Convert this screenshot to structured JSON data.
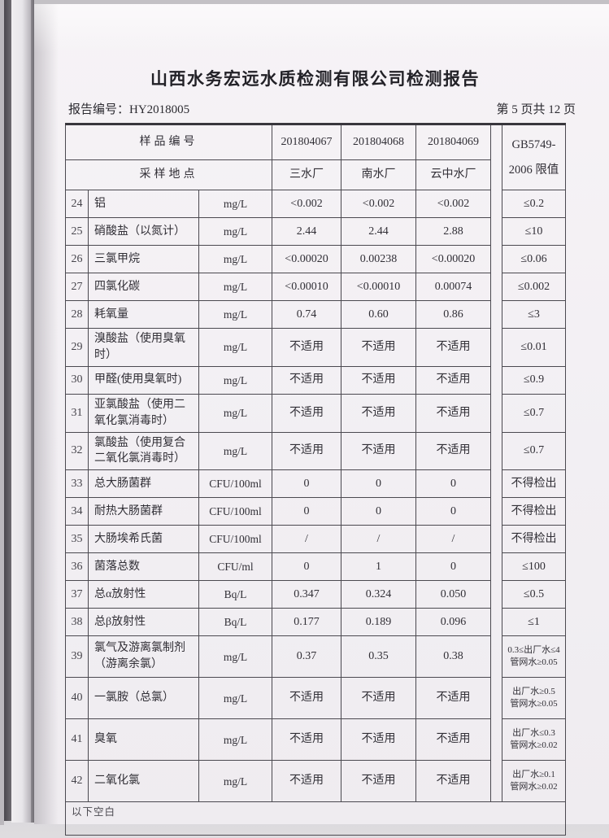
{
  "page": {
    "title": "山西水务宏远水质检测有限公司检测报告",
    "report_no": "报告编号：HY2018005",
    "page_indicator": "第 5 页共 12 页"
  },
  "table": {
    "header": {
      "sample_id_label": "样品编号",
      "location_label": "采样地点",
      "sample_ids": [
        "201804067",
        "201804068",
        "201804069"
      ],
      "locations": [
        "三水厂",
        "南水厂",
        "云中水厂"
      ],
      "limit_header_line1": "GB5749-",
      "limit_header_line2": "2006 限值"
    },
    "rows": [
      {
        "no": "24",
        "name": "铝",
        "unit": "mg/L",
        "values": [
          "<0.002",
          "<0.002",
          "<0.002"
        ],
        "limit": "≤0.2"
      },
      {
        "no": "25",
        "name": "硝酸盐（以氮计）",
        "unit": "mg/L",
        "values": [
          "2.44",
          "2.44",
          "2.88"
        ],
        "limit": "≤10"
      },
      {
        "no": "26",
        "name": "三氯甲烷",
        "unit": "mg/L",
        "values": [
          "<0.00020",
          "0.00238",
          "<0.00020"
        ],
        "limit": "≤0.06"
      },
      {
        "no": "27",
        "name": "四氯化碳",
        "unit": "mg/L",
        "values": [
          "<0.00010",
          "<0.00010",
          "0.00074"
        ],
        "limit": "≤0.002"
      },
      {
        "no": "28",
        "name": "耗氧量",
        "unit": "mg/L",
        "values": [
          "0.74",
          "0.60",
          "0.86"
        ],
        "limit": "≤3"
      },
      {
        "no": "29",
        "name": "溴酸盐（使用臭氧时）",
        "unit": "mg/L",
        "values": [
          "不适用",
          "不适用",
          "不适用"
        ],
        "limit": "≤0.01"
      },
      {
        "no": "30",
        "name": "甲醛(使用臭氧时)",
        "unit": "mg/L",
        "values": [
          "不适用",
          "不适用",
          "不适用"
        ],
        "limit": "≤0.9"
      },
      {
        "no": "31",
        "name": "亚氯酸盐（使用二氧化氯消毒时）",
        "unit": "mg/L",
        "values": [
          "不适用",
          "不适用",
          "不适用"
        ],
        "limit": "≤0.7"
      },
      {
        "no": "32",
        "name": "氯酸盐（使用复合二氧化氯消毒时）",
        "unit": "mg/L",
        "values": [
          "不适用",
          "不适用",
          "不适用"
        ],
        "limit": "≤0.7"
      },
      {
        "no": "33",
        "name": "总大肠菌群",
        "unit": "CFU/100ml",
        "values": [
          "0",
          "0",
          "0"
        ],
        "limit": "不得检出"
      },
      {
        "no": "34",
        "name": "耐热大肠菌群",
        "unit": "CFU/100ml",
        "values": [
          "0",
          "0",
          "0"
        ],
        "limit": "不得检出"
      },
      {
        "no": "35",
        "name": "大肠埃希氏菌",
        "unit": "CFU/100ml",
        "values": [
          "/",
          "/",
          "/"
        ],
        "limit": "不得检出"
      },
      {
        "no": "36",
        "name": "菌落总数",
        "unit": "CFU/ml",
        "values": [
          "0",
          "1",
          "0"
        ],
        "limit": "≤100"
      },
      {
        "no": "37",
        "name": "总α放射性",
        "unit": "Bq/L",
        "values": [
          "0.347",
          "0.324",
          "0.050"
        ],
        "limit": "≤0.5"
      },
      {
        "no": "38",
        "name": "总β放射性",
        "unit": "Bq/L",
        "values": [
          "0.177",
          "0.189",
          "0.096"
        ],
        "limit": "≤1"
      },
      {
        "no": "39",
        "name": "氯气及游离氯制剂（游离余氯）",
        "unit": "mg/L",
        "values": [
          "0.37",
          "0.35",
          "0.38"
        ],
        "limit": [
          "0.3≤出厂水≤4",
          "管网水≥0.05"
        ]
      },
      {
        "no": "40",
        "name": "一氯胺（总氯）",
        "unit": "mg/L",
        "values": [
          "不适用",
          "不适用",
          "不适用"
        ],
        "limit": [
          "出厂水≥0.5",
          "管网水≥0.05"
        ]
      },
      {
        "no": "41",
        "name": "臭氧",
        "unit": "mg/L",
        "values": [
          "不适用",
          "不适用",
          "不适用"
        ],
        "limit": [
          "出厂水≤0.3",
          "管网水≥0.02"
        ]
      },
      {
        "no": "42",
        "name": "二氧化氯",
        "unit": "mg/L",
        "values": [
          "不适用",
          "不适用",
          "不适用"
        ],
        "limit": [
          "出厂水≥0.1",
          "管网水≥0.02"
        ]
      }
    ],
    "footer_note": "以下空白"
  }
}
